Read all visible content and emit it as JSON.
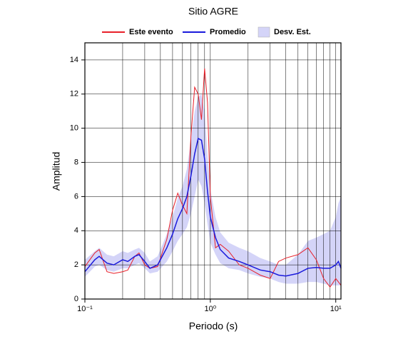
{
  "chart_data": {
    "type": "line",
    "title": "Sitio AGRE",
    "xlabel": "Periodo (s)",
    "ylabel": "Amplitud",
    "xscale": "log",
    "xlim": [
      0.1,
      11
    ],
    "ylim": [
      0,
      15
    ],
    "xticks": [
      {
        "value": 0.1,
        "label": "10⁻¹"
      },
      {
        "value": 1,
        "label": "10⁰"
      },
      {
        "value": 10,
        "label": "10¹"
      }
    ],
    "yticks": [
      0,
      2,
      4,
      6,
      8,
      10,
      12,
      14
    ],
    "grid": true,
    "x": [
      0.1,
      0.12,
      0.13,
      0.15,
      0.17,
      0.2,
      0.22,
      0.25,
      0.27,
      0.3,
      0.33,
      0.38,
      0.45,
      0.5,
      0.55,
      0.6,
      0.65,
      0.7,
      0.75,
      0.8,
      0.85,
      0.9,
      0.95,
      1.0,
      1.1,
      1.2,
      1.4,
      1.7,
      2,
      2.5,
      3,
      3.5,
      4,
      5,
      6,
      7,
      8,
      9,
      10,
      10.5,
      11
    ],
    "series": [
      {
        "name": "Este evento",
        "color": "#e8202a",
        "values": [
          1.9,
          2.7,
          2.9,
          1.6,
          1.5,
          1.6,
          1.7,
          2.5,
          2.7,
          2.0,
          1.8,
          1.9,
          3.5,
          5.2,
          6.2,
          5.5,
          5.0,
          9.5,
          12.4,
          12.0,
          10.5,
          13.5,
          11.5,
          6.0,
          3.0,
          3.2,
          2.8,
          2.0,
          1.8,
          1.4,
          1.2,
          2.2,
          2.4,
          2.6,
          3.0,
          2.3,
          1.2,
          0.7,
          1.2,
          1.0,
          0.8
        ]
      },
      {
        "name": "Promedio",
        "color": "#1a1adc",
        "values": [
          1.6,
          2.3,
          2.5,
          2.1,
          2.0,
          2.3,
          2.2,
          2.5,
          2.6,
          2.2,
          1.8,
          2.0,
          3.0,
          3.8,
          4.7,
          5.3,
          6.0,
          7.2,
          8.5,
          9.4,
          9.3,
          8.2,
          6.3,
          4.8,
          3.6,
          2.9,
          2.4,
          2.2,
          2.0,
          1.7,
          1.6,
          1.4,
          1.35,
          1.5,
          1.8,
          1.85,
          1.8,
          1.8,
          2.0,
          2.2,
          1.8
        ]
      },
      {
        "name": "Desv. Est.",
        "color": "#d4d4f8",
        "type": "band",
        "lower": [
          1.3,
          1.9,
          2.0,
          1.7,
          1.6,
          1.8,
          1.8,
          2.0,
          2.1,
          1.8,
          1.5,
          1.6,
          2.2,
          2.8,
          3.4,
          3.8,
          4.2,
          5.0,
          6.0,
          7.0,
          6.6,
          5.6,
          4.4,
          3.3,
          2.6,
          2.1,
          1.8,
          1.7,
          1.5,
          1.3,
          1.2,
          1.0,
          0.9,
          0.9,
          1.0,
          1.0,
          0.9,
          0.8,
          0.8,
          0.8,
          0.8
        ],
        "upper": [
          2.3,
          2.8,
          3.0,
          2.6,
          2.5,
          2.8,
          2.7,
          2.9,
          3.0,
          2.7,
          2.2,
          2.5,
          3.8,
          4.8,
          5.9,
          6.6,
          7.6,
          9.3,
          11.0,
          11.8,
          12.0,
          11.0,
          8.4,
          6.4,
          4.8,
          3.9,
          3.3,
          3.0,
          2.8,
          2.4,
          2.2,
          2.0,
          2.0,
          2.6,
          3.4,
          3.6,
          3.8,
          4.0,
          4.8,
          5.6,
          6.0
        ]
      }
    ]
  }
}
